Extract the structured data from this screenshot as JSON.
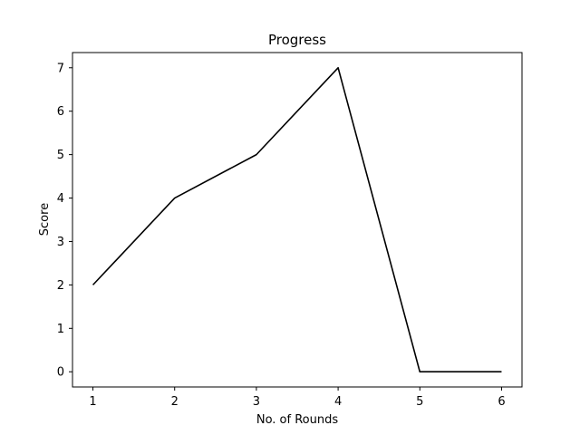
{
  "chart_data": {
    "type": "line",
    "title": "Progress",
    "xlabel": "No. of Rounds",
    "ylabel": "Score",
    "x": [
      1,
      2,
      3,
      4,
      5,
      6
    ],
    "series": [
      {
        "values": [
          2,
          4,
          5,
          7,
          0,
          0
        ],
        "color": "#000000"
      }
    ],
    "xlim": [
      0.75,
      6.25
    ],
    "ylim": [
      -0.35,
      7.35
    ],
    "xticks": [
      1,
      2,
      3,
      4,
      5,
      6
    ],
    "yticks": [
      0,
      1,
      2,
      3,
      4,
      5,
      6,
      7
    ],
    "grid": false,
    "legend": "none"
  }
}
